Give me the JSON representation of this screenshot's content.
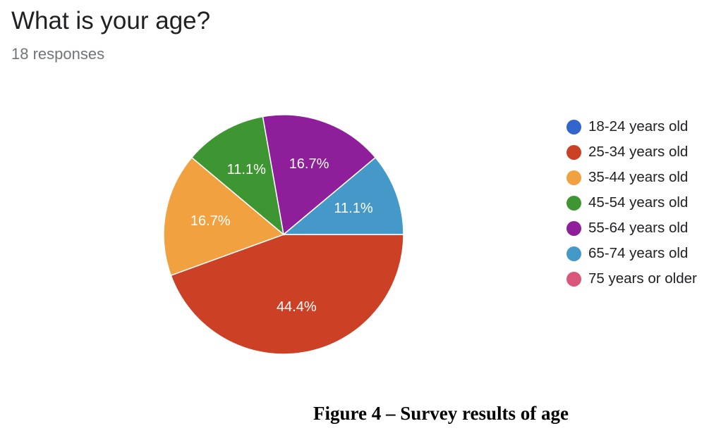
{
  "question": {
    "title": "What is your age?",
    "responses": "18 responses"
  },
  "caption": "Figure 4 – Survey results of age",
  "chart_data": {
    "type": "pie",
    "title": "What is your age?",
    "subtitle": "18 responses",
    "total": 18,
    "legend_position": "right",
    "categories": [
      "18-24 years old",
      "25-34 years old",
      "35-44 years old",
      "45-54 years old",
      "55-64 years old",
      "65-74 years old",
      "75 years or older"
    ],
    "values": [
      0,
      8,
      3,
      2,
      3,
      2,
      0
    ],
    "percent_labels": [
      "",
      "44.4%",
      "16.7%",
      "11.1%",
      "16.7%",
      "11.1%",
      ""
    ],
    "colors": [
      "#3366cc",
      "#cc4125",
      "#f1a140",
      "#3e9632",
      "#8f1e9b",
      "#4499c9",
      "#d9587a"
    ]
  }
}
